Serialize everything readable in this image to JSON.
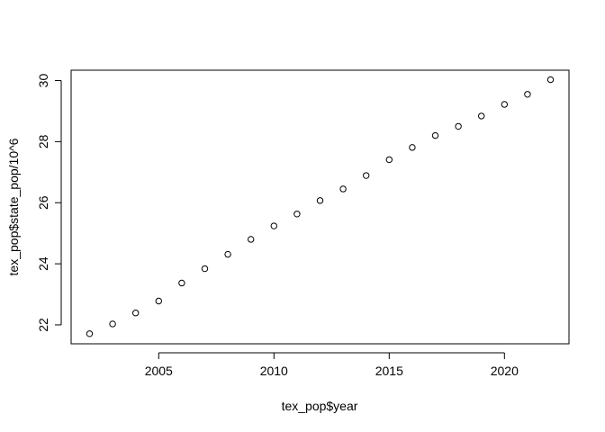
{
  "chart_data": {
    "type": "scatter",
    "title": "",
    "xlabel": "tex_pop$year",
    "ylabel": "tex_pop$state_pop/10^6",
    "xlim": [
      2001.2,
      2022.8
    ],
    "ylim": [
      21.38,
      30.34
    ],
    "x_ticks": [
      2005,
      2010,
      2015,
      2020
    ],
    "y_ticks": [
      22,
      24,
      26,
      28,
      30
    ],
    "grid": false,
    "legend": "none",
    "marker": "open-circle",
    "colors": {
      "marker": "#000000",
      "axis": "#000000",
      "background": "#ffffff"
    },
    "x": [
      2002,
      2003,
      2004,
      2005,
      2006,
      2007,
      2008,
      2009,
      2010,
      2011,
      2012,
      2013,
      2014,
      2015,
      2016,
      2017,
      2018,
      2019,
      2020,
      2021,
      2022
    ],
    "y": [
      21.71,
      22.03,
      22.39,
      22.78,
      23.37,
      23.84,
      24.31,
      24.8,
      25.24,
      25.63,
      26.07,
      26.45,
      26.89,
      27.41,
      27.81,
      28.2,
      28.5,
      28.84,
      29.22,
      29.55,
      30.03
    ]
  }
}
